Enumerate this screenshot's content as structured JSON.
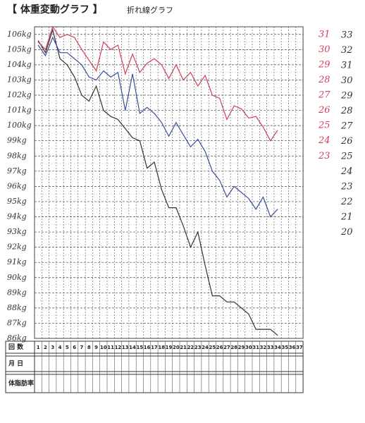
{
  "chart_data": {
    "type": "line",
    "title": "【 体重変動グラフ 】",
    "subtitle": "折れ線グラフ",
    "categories": [
      1,
      2,
      3,
      4,
      5,
      6,
      7,
      8,
      9,
      10,
      11,
      12,
      13,
      14,
      15,
      16,
      17,
      18,
      19,
      20,
      21,
      22,
      23,
      24,
      25,
      26,
      27,
      28,
      29,
      30,
      31,
      32,
      33,
      34,
      35,
      36,
      37
    ],
    "row_labels": [
      "回 数",
      "月 日",
      "体脂肪率"
    ],
    "ylim": [
      86,
      106.5
    ],
    "yticks": [
      {
        "value": 106,
        "label": "106kg"
      },
      {
        "value": 105,
        "label": "105kg"
      },
      {
        "value": 104,
        "label": "104kg"
      },
      {
        "value": 103,
        "label": "103kg"
      },
      {
        "value": 102,
        "label": "102kg"
      },
      {
        "value": 101,
        "label": "101kg"
      },
      {
        "value": 100,
        "label": "100kg"
      },
      {
        "value": 99,
        "label": "99kg"
      },
      {
        "value": 98,
        "label": "98kg"
      },
      {
        "value": 97,
        "label": "97kg"
      },
      {
        "value": 96,
        "label": "96kg"
      },
      {
        "value": 95,
        "label": "95kg"
      },
      {
        "value": 94,
        "label": "94kg"
      },
      {
        "value": 93,
        "label": "93kg"
      },
      {
        "value": 92,
        "label": "92kg"
      },
      {
        "value": 91,
        "label": "91kg"
      },
      {
        "value": 90,
        "label": "90kg"
      },
      {
        "value": 89,
        "label": "89kg"
      },
      {
        "value": 88,
        "label": "88kg"
      },
      {
        "value": 87,
        "label": "87kg"
      },
      {
        "value": 86,
        "label": "86kg"
      }
    ],
    "y2lim": [
      11,
      31.5
    ],
    "y2ticks": [
      31,
      30,
      29,
      28,
      27,
      26,
      25,
      24,
      23
    ],
    "side_labels": [
      "33",
      "32",
      "31",
      "30",
      "29",
      "28",
      "27",
      "26",
      "25",
      "24",
      "23",
      "22",
      "21",
      "20"
    ],
    "grid": true,
    "series": [
      {
        "color": "#333333",
        "values": [
          105.6,
          104.8,
          106.3,
          104.4,
          104.0,
          103.2,
          102.0,
          101.6,
          102.6,
          101.0,
          100.6,
          100.4,
          99.8,
          99.2,
          99.0,
          97.2,
          97.6,
          95.8,
          94.6,
          94.6,
          93.4,
          92.0,
          93.0,
          90.8,
          88.8,
          88.8,
          88.4,
          88.4,
          88.0,
          87.6,
          86.6,
          86.6,
          86.6,
          86.2,
          null,
          null,
          null
        ]
      },
      {
        "color": "#3a4f9a",
        "values": [
          105.3,
          104.6,
          105.8,
          104.8,
          104.8,
          104.4,
          104.0,
          103.2,
          103.0,
          103.6,
          103.2,
          103.5,
          101.0,
          103.4,
          100.8,
          101.2,
          100.8,
          100.2,
          99.3,
          100.2,
          99.4,
          98.6,
          99.1,
          98.3,
          97.0,
          96.4,
          95.3,
          96.0,
          95.6,
          95.2,
          94.5,
          95.3,
          94.0,
          94.5,
          null,
          null,
          null
        ]
      },
      {
        "color": "#d0405a",
        "axis": "y2",
        "values": [
          30.5,
          30.0,
          31.5,
          30.8,
          31.0,
          30.8,
          30.0,
          29.3,
          28.6,
          30.5,
          30.0,
          30.3,
          28.4,
          29.7,
          28.5,
          29.1,
          29.4,
          29.0,
          28.1,
          29.0,
          28.0,
          28.5,
          27.6,
          28.3,
          27.0,
          26.8,
          25.4,
          26.3,
          26.1,
          25.5,
          25.6,
          24.9,
          24.0,
          24.7,
          null,
          null,
          null
        ]
      }
    ]
  }
}
